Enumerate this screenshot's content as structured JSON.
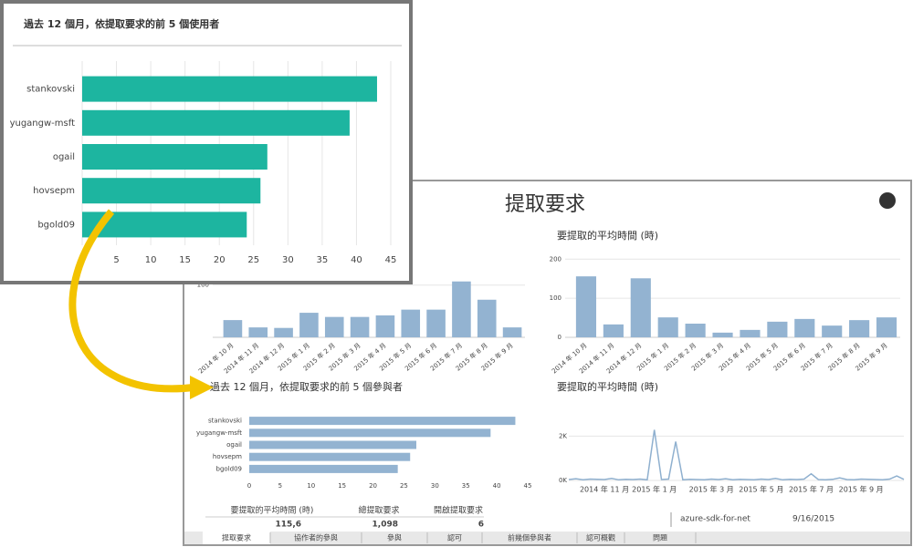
{
  "dashboard": {
    "title": "提取要求",
    "table": {
      "headers": [
        "要提取的平均時間 (時)",
        "總提取要求",
        "開啟提取要求"
      ],
      "values": [
        "115,6",
        "1,098",
        "6"
      ]
    },
    "tabs": [
      "提取要求",
      "協作者的參與",
      "參與",
      "認可",
      "前幾個參與者",
      "認可概觀",
      "問題"
    ],
    "repo": {
      "name": "azure-sdk-for-net",
      "date": "9/16/2015"
    }
  },
  "chart_data": [
    {
      "type": "hbar",
      "title": "過去 12 個月，依提取要求的前 5 個使用者",
      "color": "#1db5a0",
      "categories": [
        "stankovski",
        "yugangw-msft",
        "ogail",
        "hovsepm",
        "bgold09"
      ],
      "values": [
        43,
        39,
        27,
        26,
        24
      ],
      "xlim": [
        0,
        45
      ],
      "xticks": [
        0,
        5,
        10,
        15,
        20,
        25,
        30,
        35,
        40,
        45
      ],
      "grid": true
    },
    {
      "type": "column",
      "color": "#93b3d1",
      "categories": [
        "2014 年 10 月",
        "2014 年 11 月",
        "2014 年 12 月",
        "2015 年 1 月",
        "2015 年 2 月",
        "2015 年 3 月",
        "2015 年 4 月",
        "2015 年 5 月",
        "2015 年 6 月",
        "2015 年 7 月",
        "2015 年 8 月",
        "2015 年 9 月"
      ],
      "values": [
        33,
        19,
        18,
        47,
        39,
        39,
        42,
        53,
        53,
        107,
        72,
        19
      ],
      "ylim": [
        0,
        110
      ],
      "yticks": [
        100
      ],
      "grid": true
    },
    {
      "type": "column",
      "title": "要提取的平均時間 (時)",
      "color": "#93b3d1",
      "categories": [
        "2014 年 10 月",
        "2014 年 11 月",
        "2014 年 12 月",
        "2015 年 1 月",
        "2015 年 2 月",
        "2015 年 3 月",
        "2015 年 4 月",
        "2015 年 5 月",
        "2015 年 6 月",
        "2015 年 7 月",
        "2015 年 8 月",
        "2015 年 9 月"
      ],
      "values": [
        156,
        33,
        151,
        51,
        35,
        12,
        19,
        40,
        47,
        30,
        44,
        51
      ],
      "ylim": [
        0,
        210
      ],
      "yticks": [
        0,
        100,
        200
      ],
      "grid": true
    },
    {
      "type": "hbar",
      "title": "過去 12 個月，依提取要求的前 5 個參與者",
      "color": "#93b3d1",
      "categories": [
        "stankovski",
        "yugangw-msft",
        "ogail",
        "hovsepm",
        "bgold09"
      ],
      "values": [
        43,
        39,
        27,
        26,
        24
      ],
      "xlim": [
        0,
        45
      ],
      "xticks": [
        0,
        5,
        10,
        15,
        20,
        25,
        30,
        35,
        40,
        45
      ],
      "grid": false
    },
    {
      "type": "line",
      "title": "要提取的平均時間 (時)",
      "color": "#8fb0cf",
      "categories": [
        null,
        null,
        null,
        null,
        null,
        "2014 年 11 月",
        null,
        null,
        null,
        null,
        null,
        null,
        "2015 年 1 月",
        null,
        null,
        null,
        null,
        null,
        null,
        null,
        "2015 年 3 月",
        null,
        null,
        null,
        null,
        null,
        null,
        "2015 年 5 月",
        null,
        null,
        null,
        null,
        null,
        null,
        "2015 年 7 月",
        null,
        null,
        null,
        null,
        null,
        null,
        "2015 年 9 月",
        null,
        null,
        null,
        null,
        null,
        null
      ],
      "values": [
        40,
        80,
        30,
        60,
        50,
        40,
        90,
        30,
        50,
        40,
        60,
        30,
        2280,
        40,
        60,
        1750,
        30,
        50,
        40,
        30,
        60,
        40,
        80,
        30,
        50,
        40,
        30,
        60,
        40,
        90,
        30,
        50,
        40,
        60,
        300,
        40,
        30,
        50,
        120,
        40,
        30,
        60,
        50,
        40,
        30,
        60,
        200,
        50
      ],
      "ylim": [
        0,
        3000
      ],
      "yticks": [
        {
          "value": 0,
          "label": "0K"
        },
        {
          "value": 2000,
          "label": "2K"
        }
      ],
      "grid": true
    }
  ]
}
